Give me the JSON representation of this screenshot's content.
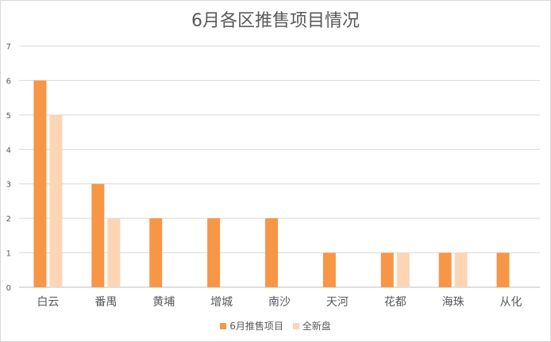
{
  "chart_data": {
    "type": "bar",
    "title": "6月各区推售项目情况",
    "categories": [
      "白云",
      "番禺",
      "黄埔",
      "增城",
      "南沙",
      "天河",
      "花都",
      "海珠",
      "从化"
    ],
    "series": [
      {
        "name": "6月推售项目",
        "color": "#f79646",
        "values": [
          6,
          3,
          2,
          2,
          2,
          1,
          1,
          1,
          1
        ]
      },
      {
        "name": "全新盘",
        "color": "#fcd5b5",
        "values": [
          5,
          2,
          0,
          0,
          0,
          0,
          1,
          1,
          0
        ]
      }
    ],
    "ylim": [
      0,
      7
    ],
    "yticks": [
      0,
      1,
      2,
      3,
      4,
      5,
      6,
      7
    ],
    "grid": true,
    "legend": "bottom"
  }
}
